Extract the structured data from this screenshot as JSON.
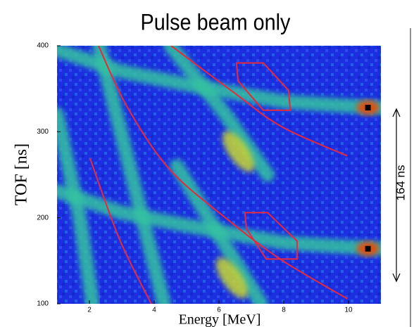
{
  "chart_data": {
    "type": "density",
    "title": "Pulse beam only",
    "xlabel": "Energy [MeV]",
    "ylabel": "TOF [ns]",
    "annotation": "164 ns",
    "xlim": [
      1,
      11
    ],
    "ylim": [
      100,
      400
    ],
    "xticks": [
      2,
      4,
      6,
      8,
      10
    ],
    "yticks": [
      100,
      200,
      300,
      400
    ],
    "background_color": "#1c2fe0",
    "band_color": "#35c3a0",
    "curve_color": "#e8283c",
    "bands": [
      {
        "x": [
          1.0,
          3.0,
          5.0,
          6.5,
          8.0,
          10.0,
          11.0
        ],
        "y": [
          395,
          370,
          355,
          345,
          335,
          330,
          328
        ]
      },
      {
        "x": [
          1.0,
          3.0,
          5.0,
          6.5,
          8.0,
          10.0,
          11.0
        ],
        "y": [
          231,
          206,
          191,
          181,
          171,
          166,
          164
        ]
      },
      {
        "x": [
          2.3,
          3.3,
          4.3
        ],
        "y": [
          400,
          250,
          100
        ]
      },
      {
        "x": [
          1.0,
          1.7,
          2.1
        ],
        "y": [
          320,
          200,
          100
        ]
      },
      {
        "x": [
          4.5,
          6.2,
          7.5
        ],
        "y": [
          400,
          320,
          250
        ]
      },
      {
        "x": [
          4.7,
          6.0,
          7.3
        ],
        "y": [
          260,
          180,
          100
        ]
      },
      {
        "x": [
          10.6,
          10.6
        ],
        "y": [
          400,
          100
        ]
      }
    ],
    "blobs": {
      "color": "#c8d830",
      "x": [
        6.6,
        6.4
      ],
      "y": [
        277,
        130
      ]
    },
    "hotspots": {
      "color": "#e05010",
      "x": [
        10.6,
        10.6
      ],
      "y": [
        328,
        164
      ]
    },
    "curves": [
      {
        "x": [
          4.52,
          6.41,
          7.93,
          9.96
        ],
        "y": [
          400,
          347,
          306,
          272
        ]
      },
      {
        "x": [
          2.28,
          3.15,
          4.46,
          6.2,
          7.93,
          9.96
        ],
        "y": [
          400,
          330,
          257,
          200,
          151,
          106
        ]
      },
      {
        "x": [
          2.02,
          2.93,
          3.91
        ],
        "y": [
          269,
          175,
          100
        ]
      }
    ],
    "regions": [
      {
        "x": [
          6.54,
          7.37,
          8.15,
          8.2,
          7.37,
          6.59
        ],
        "y": [
          380,
          380,
          348,
          325,
          325,
          359
        ]
      },
      {
        "x": [
          6.8,
          7.5,
          8.41,
          8.41,
          7.46,
          6.85
        ],
        "y": [
          206,
          206,
          173,
          152,
          152,
          187
        ]
      }
    ]
  }
}
